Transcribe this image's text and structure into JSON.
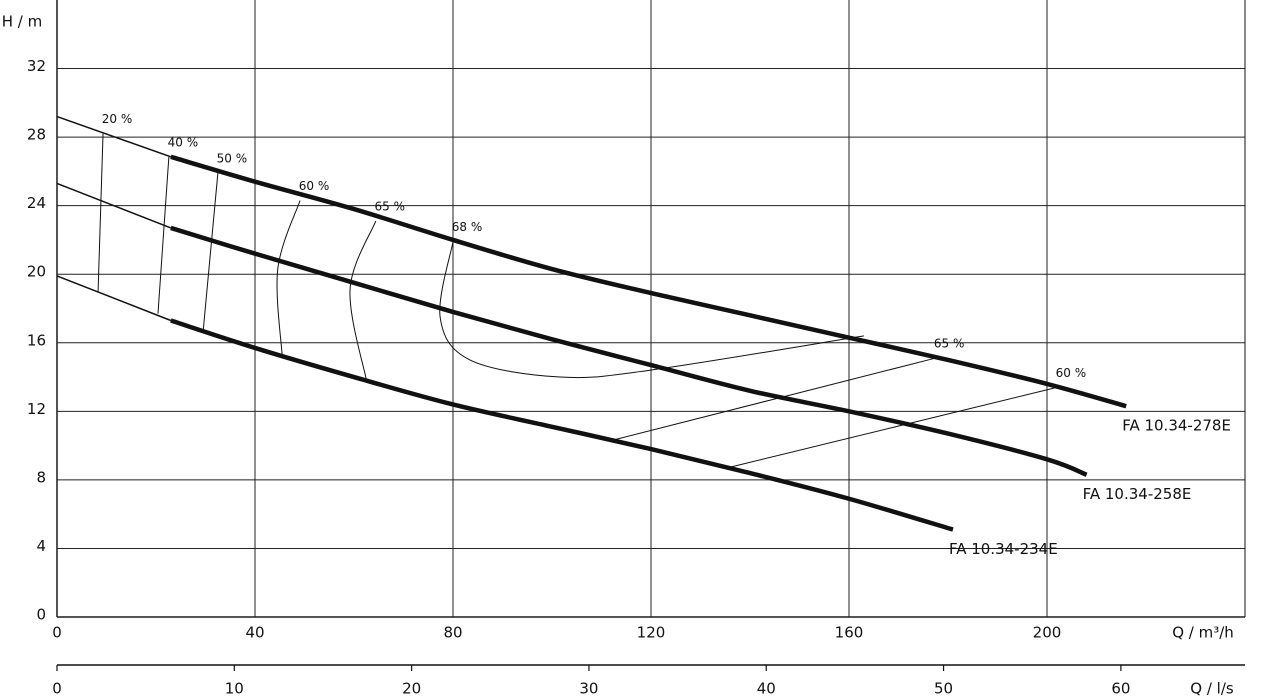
{
  "chart_data": {
    "type": "line",
    "ylabel": "H / m",
    "xlabel": "Q / m³/h",
    "x2label": "Q / l/s",
    "xlim": [
      0,
      240
    ],
    "xticks": [
      0,
      40,
      80,
      120,
      160,
      200
    ],
    "ylim": [
      0,
      36
    ],
    "yticks": [
      0,
      4,
      8,
      12,
      16,
      20,
      24,
      28,
      32
    ],
    "x2lim": [
      0,
      67
    ],
    "x2ticks": [
      0,
      10,
      20,
      30,
      40,
      50,
      60
    ],
    "grid": true,
    "color": "#111111",
    "series": [
      {
        "name": "FA 10.34-278E",
        "x": [
          0,
          23,
          40,
          60,
          80,
          100,
          120,
          140,
          160,
          180,
          200,
          216
        ],
        "values": [
          29.2,
          26.85,
          25.4,
          23.8,
          22,
          20.3,
          18.9,
          17.6,
          16.3,
          15,
          13.6,
          12.3
        ]
      },
      {
        "name": "FA 10.34-258E",
        "x": [
          0,
          23,
          40,
          60,
          80,
          100,
          120,
          140,
          160,
          180,
          200,
          208
        ],
        "values": [
          25.3,
          22.7,
          21.2,
          19.5,
          17.8,
          16.2,
          14.7,
          13.2,
          12,
          10.7,
          9.2,
          8.3
        ]
      },
      {
        "name": "FA 10.34-234E",
        "x": [
          0,
          23,
          40,
          60,
          80,
          100,
          120,
          140,
          160,
          181
        ],
        "values": [
          19.9,
          17.3,
          15.7,
          14,
          12.4,
          11.1,
          9.8,
          8.4,
          6.9,
          5.1
        ]
      }
    ],
    "efficiency_curves": [
      {
        "label": "20 %",
        "x": [
          9.3,
          8.3
        ],
        "values": [
          28.2,
          19.0
        ]
      },
      {
        "label": "40 %",
        "x": [
          22.6,
          20.4
        ],
        "values": [
          26.85,
          17.7
        ]
      },
      {
        "label": "50 %",
        "x": [
          32.5,
          29.5
        ],
        "values": [
          25.9,
          16.6
        ]
      },
      {
        "label": "60 %",
        "x": [
          49.1,
          44.6,
          45.5
        ],
        "values": [
          24.3,
          20.3,
          15.2
        ]
      },
      {
        "label": "65 %",
        "x": [
          64.4,
          59.2,
          62.6
        ],
        "values": [
          23.1,
          19.1,
          13.7
        ]
      },
      {
        "label": "68 %",
        "x": [
          80,
          77.4,
          83.4,
          101.6,
          119.8,
          163
        ],
        "values": [
          21.9,
          17.5,
          15,
          14,
          14.4,
          16.4
        ]
      },
      {
        "label": "65 %",
        "x": [
          177.4,
          112
        ],
        "values": [
          15.1,
          10.3
        ]
      },
      {
        "label": "60 %",
        "x": [
          202,
          135.4
        ],
        "values": [
          13.4,
          8.7
        ]
      }
    ]
  }
}
